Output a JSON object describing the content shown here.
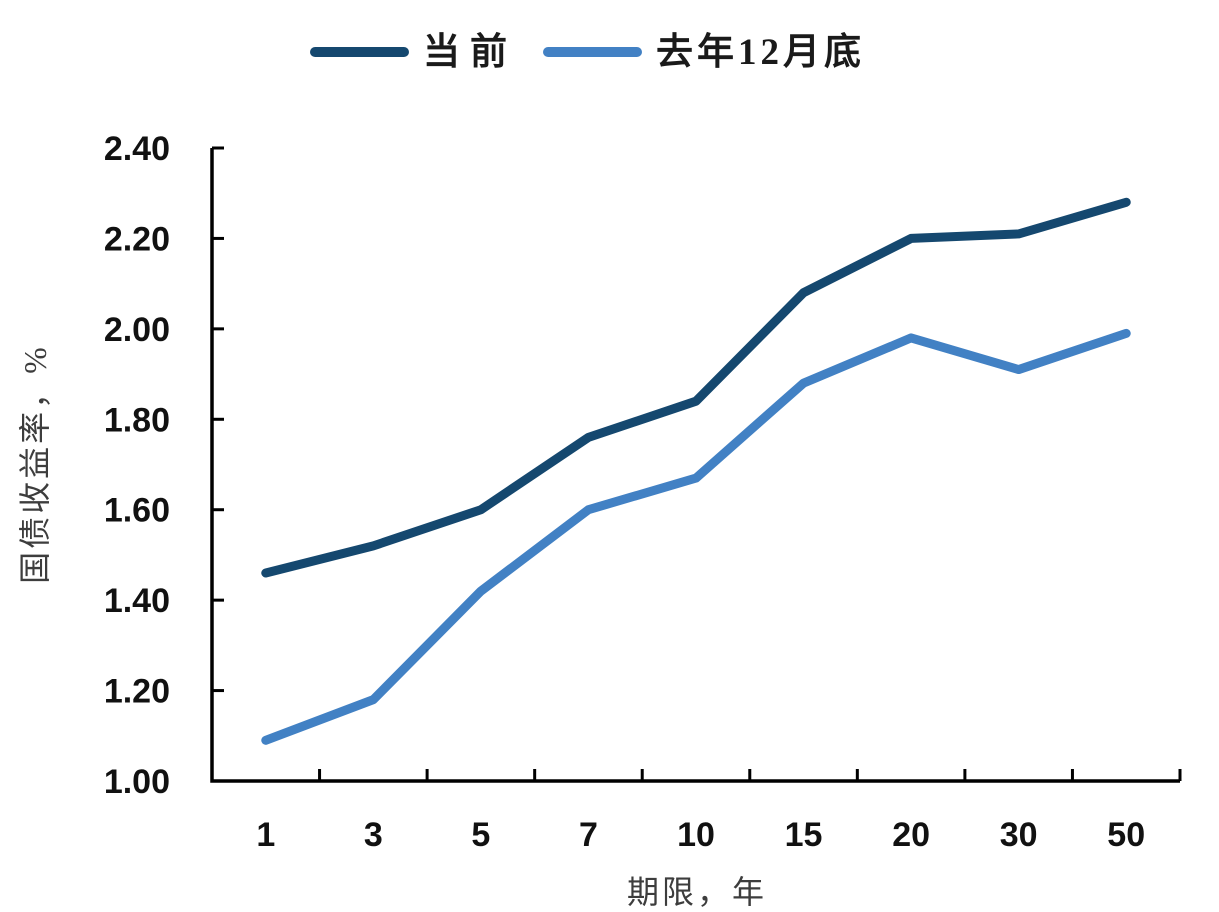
{
  "chart_data": {
    "type": "line",
    "title": "",
    "categories": [
      "1",
      "3",
      "5",
      "7",
      "10",
      "15",
      "20",
      "30",
      "50"
    ],
    "series": [
      {
        "name": "当前",
        "color": "#15486F",
        "values": [
          1.46,
          1.52,
          1.6,
          1.76,
          1.84,
          2.08,
          2.2,
          2.21,
          2.28
        ]
      },
      {
        "name": "去年12月底",
        "color": "#4281C4",
        "values": [
          1.09,
          1.18,
          1.42,
          1.6,
          1.67,
          1.88,
          1.98,
          1.91,
          1.99
        ]
      }
    ],
    "xlabel": "期限，年",
    "ylabel": "国债收益率，%",
    "ylim": [
      1.0,
      2.4
    ],
    "yticks": [
      1.0,
      1.2,
      1.4,
      1.6,
      1.8,
      2.0,
      2.2,
      2.4
    ],
    "ytick_labels": [
      "1.00",
      "1.20",
      "1.40",
      "1.60",
      "1.80",
      "2.00",
      "2.20",
      "2.40"
    ],
    "legend_position": "top",
    "grid": false,
    "axis_color": "#000000",
    "tick_label_color": "#111111",
    "axis_title_color": "#3D3D3D",
    "background_color": "#FFFFFF"
  }
}
